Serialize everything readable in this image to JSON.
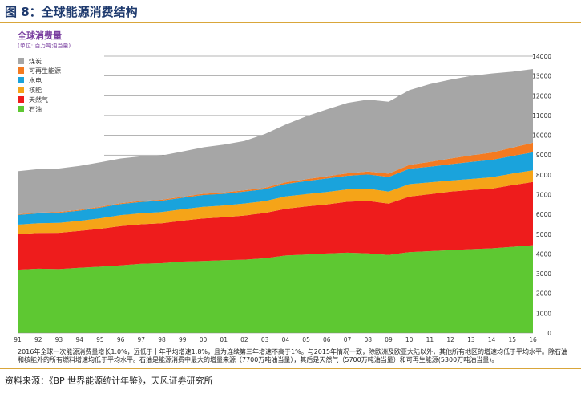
{
  "figure_title": "图 8：全球能源消费结构",
  "source": "资料来源：《BP 世界能源统计年鉴》，天风证券研究所",
  "footnote": "2016年全球一次能源消费量增长1.0%，远低于十年平均增速1.8%，且为连续第三年增速不高于1%。与2015年情况一致，除欧洲及欧亚大陆以外，其他所有地区的增速均低于平均水平。除石油和核能外的所有燃料增速均低于平均水平。石油是能源消费中最大的增量来源（7700万吨油当量），其后是天然气（5700万吨油当量）和可再生能源(5300万吨油当量)。",
  "colors": {
    "coal": "#a6a6a6",
    "renewables": "#f47a20",
    "hydro": "#1aa3dc",
    "nuclear": "#f5a418",
    "gas": "#ee1c1c",
    "oil": "#5ec832",
    "accent": "#d9a63a",
    "title_purple": "#7a3fa0",
    "heading_blue": "#1e3a6e"
  },
  "chart_data": {
    "type": "area",
    "stacked": true,
    "title": "全球消费量",
    "subtitle": "(单位: 百万吨油当量)",
    "x": [
      "91",
      "92",
      "93",
      "94",
      "95",
      "96",
      "97",
      "98",
      "99",
      "00",
      "01",
      "02",
      "03",
      "04",
      "05",
      "06",
      "07",
      "08",
      "09",
      "10",
      "11",
      "12",
      "13",
      "14",
      "15",
      "16"
    ],
    "ylim": [
      0,
      14000
    ],
    "yticks": [
      0,
      1000,
      2000,
      3000,
      4000,
      5000,
      6000,
      7000,
      8000,
      9000,
      10000,
      11000,
      12000,
      13000,
      14000
    ],
    "y_axis_position": "right",
    "legend_position": "top-left",
    "gridlines": "horizontal",
    "series": [
      {
        "name": "石油",
        "key": "oil",
        "values": [
          3200,
          3250,
          3230,
          3300,
          3350,
          3420,
          3500,
          3530,
          3610,
          3640,
          3680,
          3710,
          3780,
          3920,
          3970,
          4020,
          4060,
          4030,
          3950,
          4090,
          4140,
          4190,
          4240,
          4280,
          4360,
          4440
        ]
      },
      {
        "name": "天然气",
        "key": "gas",
        "values": [
          1800,
          1810,
          1840,
          1860,
          1920,
          1990,
          2000,
          2020,
          2070,
          2150,
          2170,
          2230,
          2290,
          2360,
          2430,
          2480,
          2580,
          2650,
          2590,
          2810,
          2880,
          2960,
          2990,
          3020,
          3120,
          3200
        ]
      },
      {
        "name": "核能",
        "key": "nuclear",
        "values": [
          480,
          490,
          500,
          510,
          530,
          550,
          560,
          570,
          580,
          590,
          600,
          610,
          600,
          625,
          626,
          635,
          622,
          620,
          614,
          626,
          600,
          560,
          563,
          575,
          583,
          590
        ]
      },
      {
        "name": "水电",
        "key": "hydro",
        "values": [
          490,
          500,
          510,
          520,
          540,
          560,
          570,
          570,
          580,
          600,
          590,
          600,
          600,
          630,
          660,
          680,
          690,
          720,
          740,
          780,
          790,
          830,
          860,
          880,
          890,
          910
        ]
      },
      {
        "name": "可再生能源",
        "key": "renewables",
        "values": [
          30,
          35,
          38,
          40,
          42,
          45,
          48,
          50,
          55,
          60,
          65,
          70,
          75,
          85,
          95,
          110,
          125,
          145,
          165,
          195,
          240,
          285,
          330,
          370,
          420,
          480
        ]
      },
      {
        "name": "煤炭",
        "key": "coal",
        "values": [
          2180,
          2200,
          2200,
          2220,
          2250,
          2260,
          2260,
          2240,
          2290,
          2350,
          2420,
          2490,
          2720,
          2920,
          3180,
          3380,
          3560,
          3640,
          3640,
          3780,
          3940,
          3990,
          4020,
          4000,
          3840,
          3730
        ]
      }
    ]
  }
}
